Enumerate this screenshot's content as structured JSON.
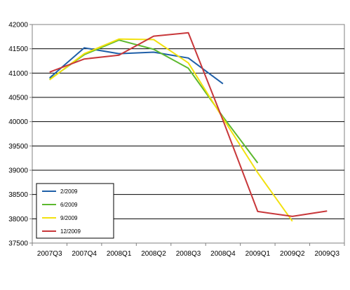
{
  "chart_data": {
    "type": "line",
    "categories": [
      "2007Q3",
      "2007Q4",
      "2008Q1",
      "2008Q2",
      "2008Q3",
      "2008Q4",
      "2009Q1",
      "2009Q2",
      "2009Q3"
    ],
    "ylim": [
      37500,
      42000
    ],
    "yticks": [
      37500,
      38000,
      38500,
      39000,
      39500,
      40000,
      40500,
      41000,
      41500,
      42000
    ],
    "grid": "horizontal",
    "legend": "bottom-left",
    "series": [
      {
        "name": "2/2009",
        "color": "#1f5fa8",
        "values": [
          40900,
          41520,
          41400,
          41430,
          41310,
          40780,
          null,
          null,
          null
        ]
      },
      {
        "name": "6/2009",
        "color": "#5cb82e",
        "values": [
          40870,
          41380,
          41680,
          41490,
          41100,
          40100,
          39150,
          null,
          null
        ]
      },
      {
        "name": "9/2009",
        "color": "#f2e10f",
        "values": [
          40860,
          41400,
          41700,
          41690,
          41210,
          40070,
          38950,
          37950,
          null
        ]
      },
      {
        "name": "12/2009",
        "color": "#c8373a",
        "values": [
          41020,
          41290,
          41370,
          41760,
          41830,
          40030,
          38150,
          38050,
          38160
        ]
      }
    ]
  }
}
